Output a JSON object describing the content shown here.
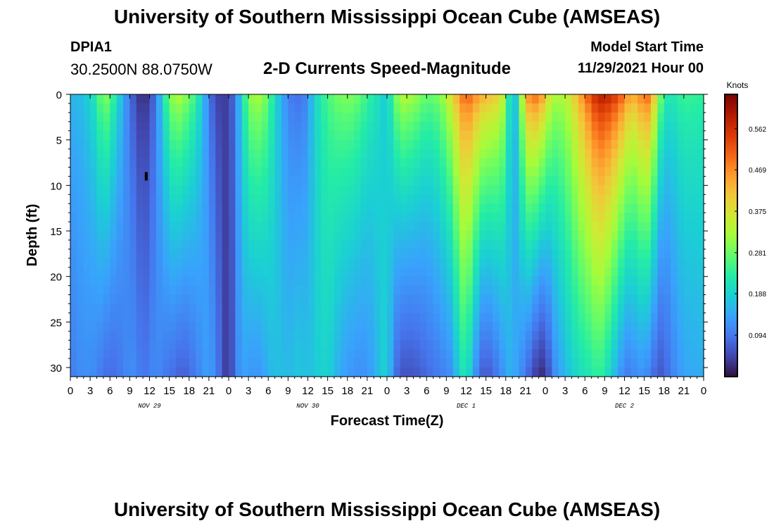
{
  "header": {
    "title": "University of Southern Mississippi Ocean Cube (AMSEAS)",
    "station": "DPIA1",
    "coords": "30.2500N  88.0750W",
    "subtitle": "2-D Currents Speed-Magnitude",
    "model_start_label": "Model Start Time",
    "model_start_value": "11/29/2021 Hour 00"
  },
  "footer": {
    "title": "University of Southern Mississippi Ocean Cube (AMSEAS)"
  },
  "colors": {
    "colormap": [
      "#30123b",
      "#4145ab",
      "#4675ed",
      "#39a2fc",
      "#1bcfd4",
      "#24eca6",
      "#61fc6c",
      "#a4fc3b",
      "#d1e834",
      "#f3c63a",
      "#fe9b2d",
      "#f36315",
      "#d93806",
      "#b11901",
      "#7a0403"
    ]
  },
  "chart_data": {
    "type": "heatmap",
    "title": "2-D Currents Speed-Magnitude",
    "xlabel": "Forecast Time(Z)",
    "ylabel": "Depth (ft)",
    "x_unit": "hours",
    "xlim": [
      0,
      96
    ],
    "ylim": [
      0,
      31
    ],
    "y_reversed": true,
    "x_ticks": [
      0,
      3,
      6,
      9,
      12,
      15,
      18,
      21,
      24,
      27,
      30,
      33,
      36,
      39,
      42,
      45,
      48,
      51,
      54,
      57,
      60,
      63,
      66,
      69,
      72,
      75,
      78,
      81,
      84,
      87,
      90,
      93,
      96
    ],
    "x_tick_labels": [
      "0",
      "3",
      "6",
      "9",
      "12",
      "15",
      "18",
      "21",
      "0",
      "3",
      "6",
      "9",
      "12",
      "15",
      "18",
      "21",
      "0",
      "3",
      "6",
      "9",
      "12",
      "15",
      "18",
      "21",
      "0",
      "3",
      "6",
      "9",
      "12",
      "15",
      "18",
      "21",
      "0"
    ],
    "y_ticks": [
      0,
      5,
      10,
      15,
      20,
      25,
      30
    ],
    "y_tick_labels": [
      "0",
      "5",
      "10",
      "15",
      "20",
      "25",
      "30"
    ],
    "day_labels": [
      {
        "x": 12,
        "text": "NOV 29"
      },
      {
        "x": 36,
        "text": "NOV 30"
      },
      {
        "x": 60,
        "text": "DEC 1"
      },
      {
        "x": 84,
        "text": "DEC 2"
      }
    ],
    "colorbar": {
      "label": "Knots",
      "min": 0.0,
      "max": 0.64,
      "ticks": [
        0.094,
        0.188,
        0.281,
        0.375,
        0.469,
        0.562
      ],
      "tick_labels": [
        "0.094",
        "0.188",
        "0.281",
        "0.375",
        "0.469",
        "0.562"
      ]
    },
    "time_profile": {
      "hours": [
        0,
        2,
        4,
        5,
        6,
        8,
        9,
        10,
        11,
        12,
        13,
        14,
        15,
        16,
        17,
        18,
        19,
        20,
        21,
        22,
        24,
        25,
        26,
        27,
        28,
        29,
        30,
        31,
        33,
        35,
        36,
        37,
        39,
        41,
        43,
        45,
        47,
        48,
        49,
        50,
        52,
        54,
        56,
        58,
        59,
        60,
        61,
        62,
        63,
        64,
        65,
        66,
        67,
        68,
        69,
        70,
        71,
        72,
        73,
        75,
        77,
        79,
        80,
        81,
        82,
        83,
        84,
        85,
        86,
        87,
        88,
        89,
        90,
        91,
        93,
        96
      ],
      "surface_speed": [
        0.16,
        0.17,
        0.23,
        0.32,
        0.28,
        0.15,
        0.09,
        0.04,
        0.02,
        0.04,
        0.1,
        0.2,
        0.3,
        0.34,
        0.33,
        0.29,
        0.25,
        0.18,
        0.1,
        0.04,
        0.04,
        0.1,
        0.2,
        0.3,
        0.34,
        0.32,
        0.28,
        0.2,
        0.1,
        0.08,
        0.12,
        0.19,
        0.26,
        0.3,
        0.3,
        0.25,
        0.2,
        0.17,
        0.27,
        0.35,
        0.33,
        0.28,
        0.3,
        0.4,
        0.48,
        0.52,
        0.5,
        0.46,
        0.44,
        0.43,
        0.4,
        0.32,
        0.12,
        0.24,
        0.45,
        0.52,
        0.5,
        0.44,
        0.34,
        0.34,
        0.44,
        0.55,
        0.6,
        0.6,
        0.58,
        0.55,
        0.5,
        0.45,
        0.46,
        0.52,
        0.5,
        0.34,
        0.24,
        0.22,
        0.25,
        0.24
      ],
      "bottom_speed": [
        0.1,
        0.12,
        0.11,
        0.09,
        0.08,
        0.1,
        0.12,
        0.11,
        0.09,
        0.1,
        0.12,
        0.1,
        0.09,
        0.08,
        0.07,
        0.08,
        0.1,
        0.12,
        0.14,
        0.11,
        0.02,
        0.1,
        0.14,
        0.13,
        0.12,
        0.13,
        0.15,
        0.17,
        0.16,
        0.18,
        0.16,
        0.18,
        0.19,
        0.14,
        0.12,
        0.12,
        0.17,
        0.2,
        0.1,
        0.06,
        0.06,
        0.08,
        0.1,
        0.12,
        0.2,
        0.22,
        0.15,
        0.08,
        0.06,
        0.08,
        0.1,
        0.14,
        0.16,
        0.12,
        0.1,
        0.05,
        0.03,
        0.02,
        0.1,
        0.16,
        0.2,
        0.22,
        0.24,
        0.22,
        0.18,
        0.14,
        0.1,
        0.1,
        0.12,
        0.12,
        0.1,
        0.06,
        0.07,
        0.1,
        0.14,
        0.15
      ]
    },
    "depth_exponent": 0.65,
    "annotation": {
      "type": "marker",
      "x": 11.5,
      "y": 9,
      "color": "#000000"
    }
  }
}
